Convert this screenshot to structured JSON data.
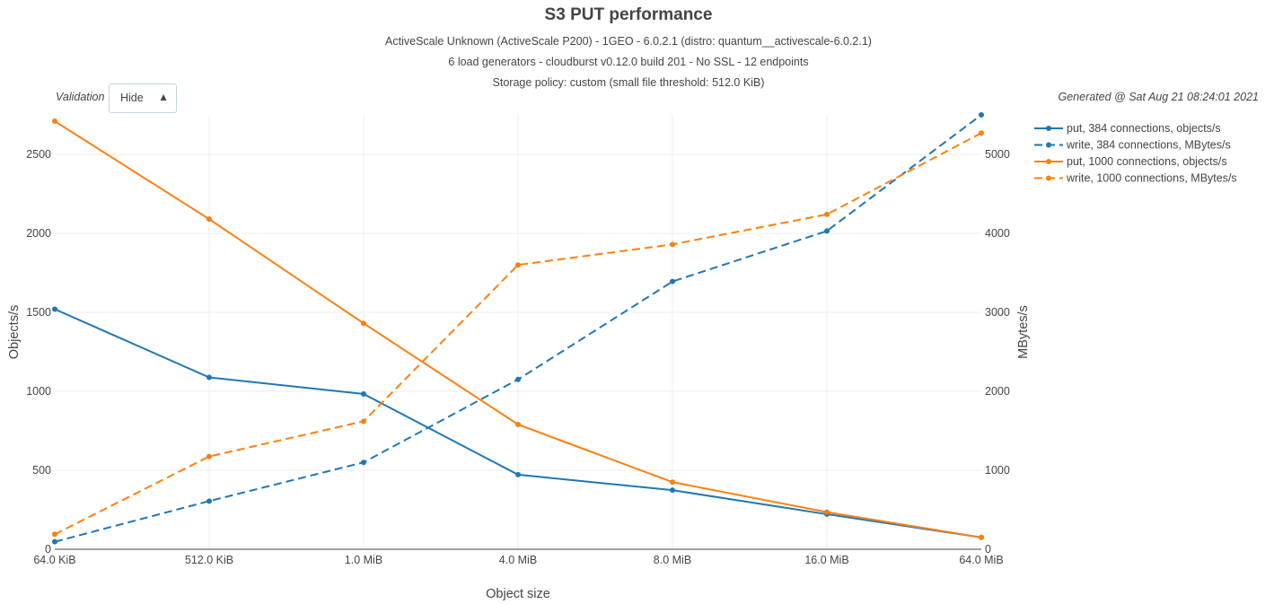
{
  "header": {
    "title": "S3 PUT performance",
    "subtitle_1": "ActiveScale Unknown (ActiveScale P200) - 1GEO - 6.0.2.1 (distro: quantum__activescale-6.0.2.1)",
    "subtitle_2": "6 load generators - cloudburst v0.12.0 build 201 - No SSL - 12 endpoints",
    "subtitle_3": "Storage policy: custom (small file threshold: 512.0 KiB)",
    "generated": "Generated @ Sat Aug 21 08:24:01 2021"
  },
  "validation": {
    "label": "Validation",
    "selected": "Hide",
    "arrow_icon": "triangle-up-icon"
  },
  "chart_data": {
    "type": "line",
    "xlabel": "Object size",
    "ylabel": "Objects/s",
    "y2label": "MBytes/s",
    "categories": [
      "64.0 KiB",
      "512.0 KiB",
      "1.0 MiB",
      "4.0 MiB",
      "8.0 MiB",
      "16.0 MiB",
      "64.0 MiB"
    ],
    "ylim": [
      0,
      2750
    ],
    "y2lim": [
      0,
      5500
    ],
    "yticks": [
      0,
      500,
      1000,
      1500,
      2000,
      2500
    ],
    "y2ticks": [
      0,
      1000,
      2000,
      3000,
      4000,
      5000
    ],
    "grid": true,
    "legend_position": "top-right",
    "series": [
      {
        "name": "put, 384 connections, objects/s",
        "axis": "y",
        "dash": "solid",
        "color": "#1f77b4",
        "values": [
          1520,
          1088,
          983,
          472,
          374,
          222,
          75
        ]
      },
      {
        "name": "write, 384 connections, MBytes/s",
        "axis": "y2",
        "dash": "dash",
        "color": "#1f77b4",
        "values": [
          95,
          610,
          1100,
          2150,
          3390,
          4030,
          5500
        ]
      },
      {
        "name": "put, 1000 connections, objects/s",
        "axis": "y",
        "dash": "solid",
        "color": "#ff7f0e",
        "values": [
          2710,
          2090,
          1430,
          790,
          425,
          235,
          75
        ]
      },
      {
        "name": "write, 1000 connections, MBytes/s",
        "axis": "y2",
        "dash": "dash",
        "color": "#ff7f0e",
        "values": [
          190,
          1175,
          1620,
          3600,
          3860,
          4240,
          5270
        ]
      }
    ]
  }
}
